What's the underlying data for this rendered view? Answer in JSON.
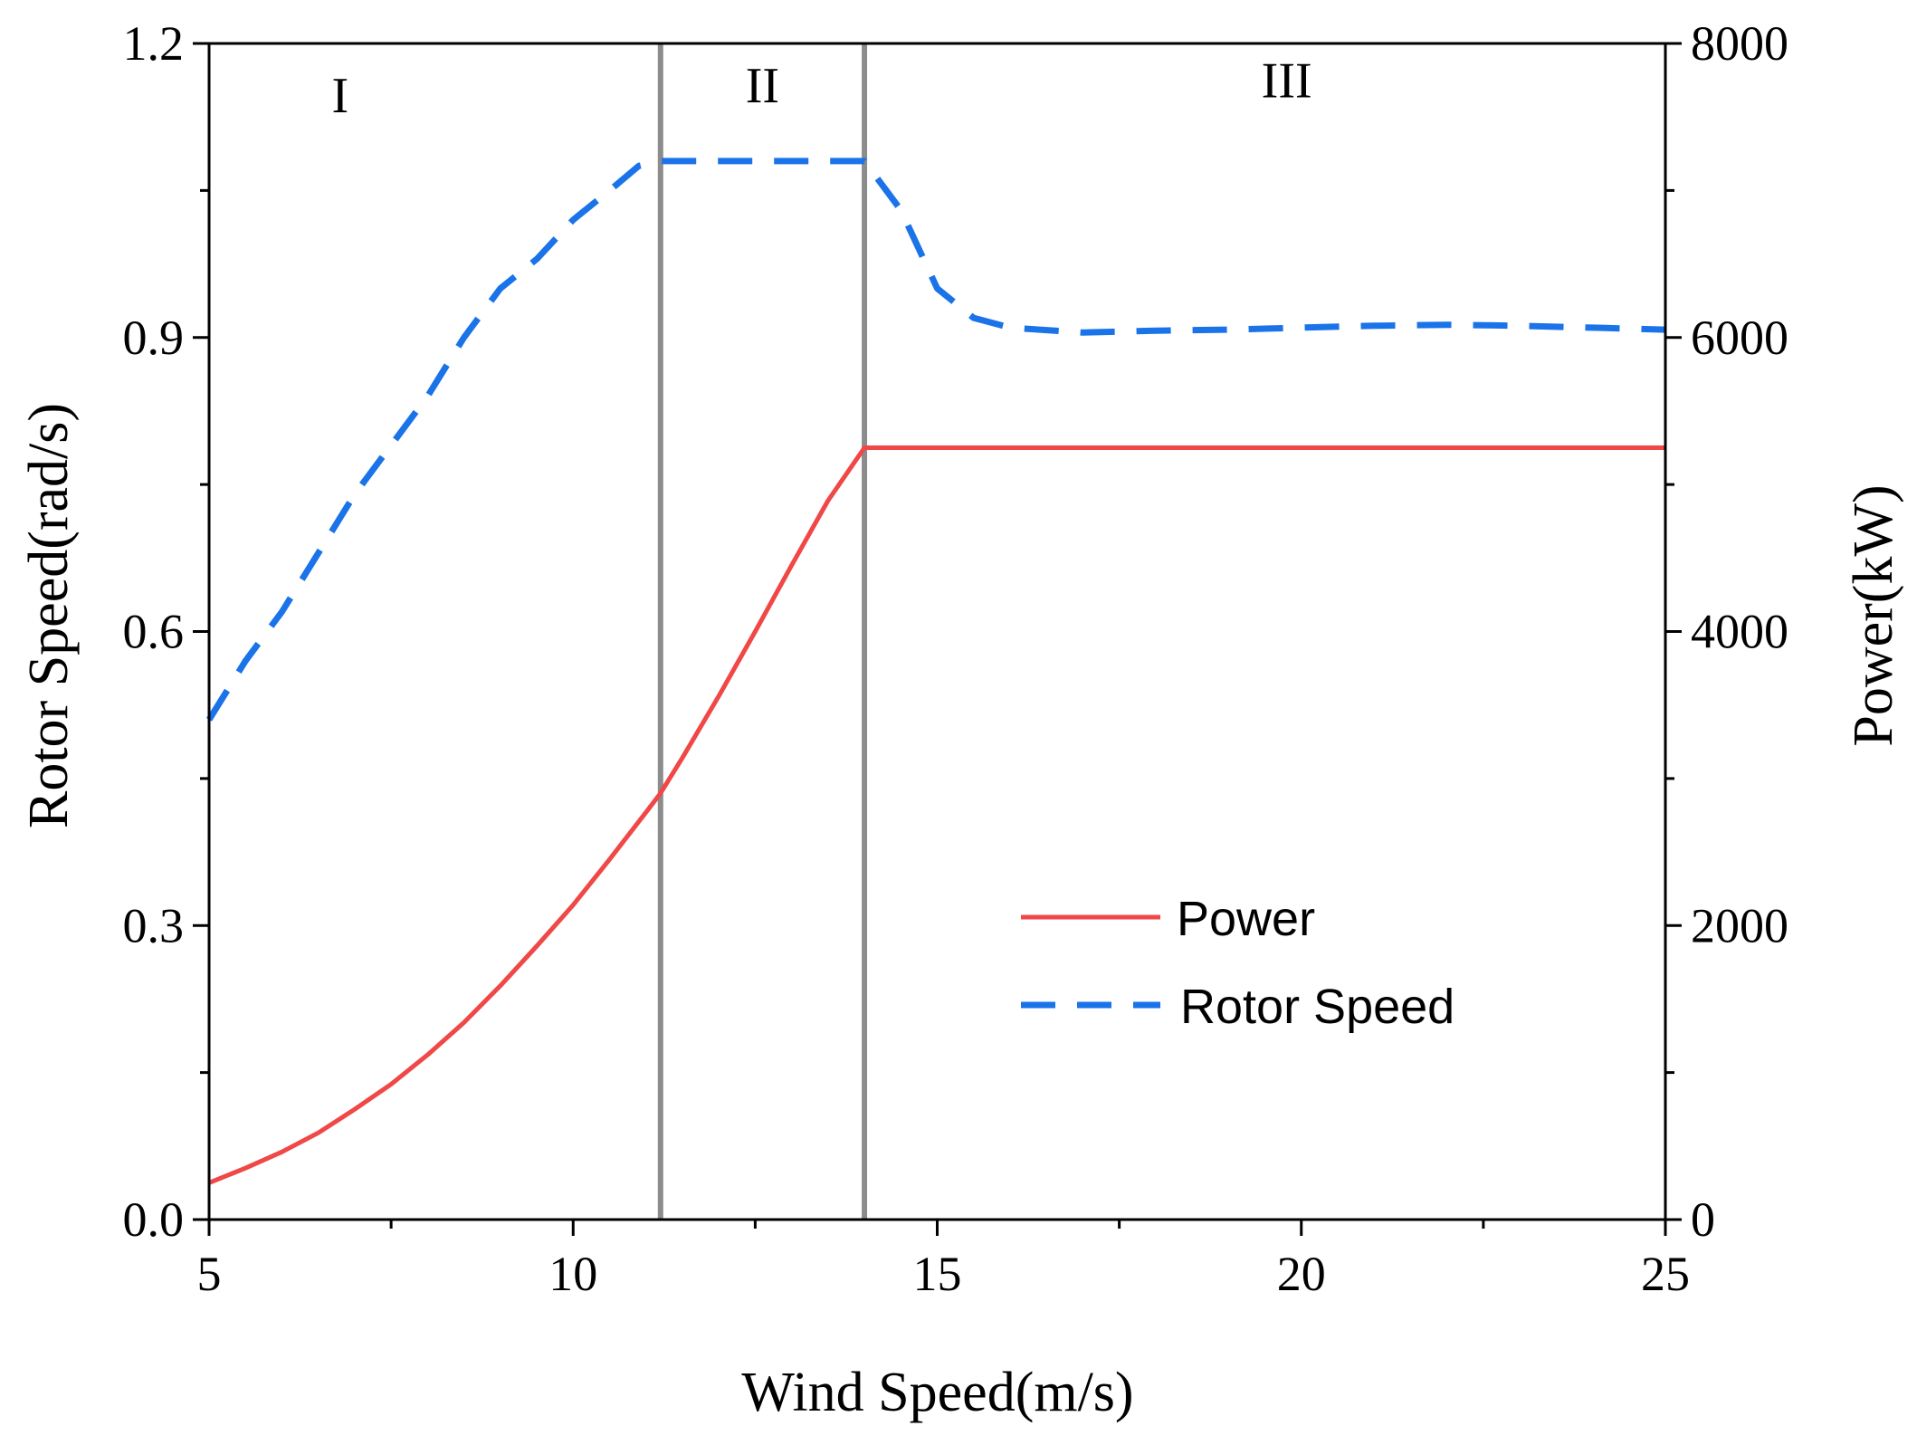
{
  "chart_data": {
    "type": "line",
    "xlabel": "Wind Speed(m/s)",
    "ylabel_left": "Rotor Speed(rad/s)",
    "ylabel_right": "Power(kW)",
    "xlim": [
      5,
      25
    ],
    "ylim_left": [
      0,
      1.2
    ],
    "ylim_right": [
      0,
      8000
    ],
    "x_ticks": [
      5,
      10,
      15,
      20,
      25
    ],
    "x_tick_labels": [
      "5",
      "10",
      "15",
      "20",
      "25"
    ],
    "y_left_ticks": [
      0,
      0.3,
      0.6,
      0.9,
      1.2
    ],
    "y_left_tick_labels": [
      "0.0",
      "0.3",
      "0.6",
      "0.9",
      "1.2"
    ],
    "y_right_ticks": [
      0,
      2000,
      4000,
      6000,
      8000
    ],
    "y_right_tick_labels": [
      "0",
      "2000",
      "4000",
      "6000",
      "8000"
    ],
    "grid": false,
    "legend_position": "bottom-right",
    "region_lines": [
      11.2,
      14.0
    ],
    "regions": [
      {
        "label": "I",
        "x": 6.8,
        "y": 1.13
      },
      {
        "label": "II",
        "x": 12.6,
        "y": 1.14
      },
      {
        "label": "III",
        "x": 19.8,
        "y": 1.145
      }
    ],
    "series": [
      {
        "name": "Power",
        "axis": "right",
        "color": "#f04747",
        "style": "solid",
        "x": [
          5,
          5.5,
          6,
          6.5,
          7,
          7.5,
          8,
          8.5,
          9,
          9.5,
          10,
          10.5,
          11,
          11.2,
          11.5,
          12,
          12.5,
          13,
          13.5,
          14,
          15,
          16,
          17,
          18,
          19,
          20,
          21,
          22,
          23,
          24,
          25
        ],
        "values": [
          250,
          350,
          460,
          590,
          750,
          920,
          1120,
          1340,
          1590,
          1860,
          2140,
          2450,
          2770,
          2900,
          3140,
          3560,
          4000,
          4450,
          4890,
          5250,
          5250,
          5250,
          5250,
          5250,
          5250,
          5250,
          5250,
          5250,
          5250,
          5250,
          5250
        ]
      },
      {
        "name": "Rotor Speed",
        "axis": "left",
        "color": "#1a73e8",
        "style": "dashed",
        "x": [
          5,
          5.5,
          6,
          6.5,
          7,
          7.5,
          8,
          8.5,
          9,
          9.5,
          10,
          10.5,
          10.9,
          11.2,
          12,
          13,
          14,
          14.5,
          15,
          15.5,
          16,
          17,
          18,
          19,
          20,
          21,
          22,
          23,
          24,
          25
        ],
        "values": [
          0.51,
          0.57,
          0.62,
          0.68,
          0.74,
          0.79,
          0.84,
          0.9,
          0.95,
          0.98,
          1.02,
          1.05,
          1.075,
          1.08,
          1.08,
          1.08,
          1.08,
          1.03,
          0.95,
          0.92,
          0.91,
          0.905,
          0.907,
          0.908,
          0.91,
          0.912,
          0.913,
          0.912,
          0.91,
          0.908
        ]
      }
    ]
  }
}
